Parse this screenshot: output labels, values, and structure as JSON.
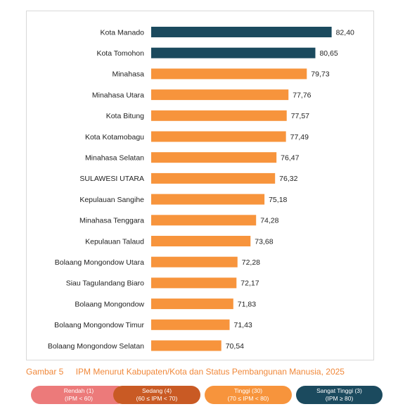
{
  "chart_data": {
    "type": "bar",
    "orientation": "horizontal",
    "categories": [
      "Kota Manado",
      "Kota Tomohon",
      "Minahasa",
      "Minahasa Utara",
      "Kota Bitung",
      "Kota Kotamobagu",
      "Minahasa Selatan",
      "SULAWESI UTARA",
      "Kepulauan Sangihe",
      "Minahasa Tenggara",
      "Kepulauan Talaud",
      "Bolaang Mongondow Utara",
      "Siau Tagulandang Biaro",
      "Bolaang Mongondow",
      "Bolaang Mongondow Timur",
      "Bolaang Mongondow Selatan"
    ],
    "values": [
      82.4,
      80.65,
      79.73,
      77.76,
      77.57,
      77.49,
      76.47,
      76.32,
      75.18,
      74.28,
      73.68,
      72.28,
      72.17,
      71.83,
      71.43,
      70.54
    ],
    "value_labels": [
      "82,40",
      "80,65",
      "79,73",
      "77,76",
      "77,57",
      "77,49",
      "76,47",
      "76,32",
      "75,18",
      "74,28",
      "73,68",
      "72,28",
      "72,17",
      "71,83",
      "71,43",
      "70,54"
    ],
    "status": [
      "sangat_tinggi",
      "sangat_tinggi",
      "tinggi",
      "tinggi",
      "tinggi",
      "tinggi",
      "tinggi",
      "tinggi",
      "tinggi",
      "tinggi",
      "tinggi",
      "tinggi",
      "tinggi",
      "tinggi",
      "tinggi",
      "tinggi"
    ],
    "xlim": [
      63,
      85
    ],
    "grid": false,
    "legend_position": "bottom"
  },
  "colors": {
    "sangat_tinggi": "#1b4a5e",
    "tinggi": "#f7943c",
    "sedang": "#c95a24",
    "rendah": "#ec7a7a",
    "caption": "#f0883a"
  },
  "caption": {
    "number": "Gambar 5",
    "text": "IPM Menurut Kabupaten/Kota dan Status Pembangunan Manusia, 2025"
  },
  "legend": [
    {
      "key": "rendah",
      "line1": "Rendah (1)",
      "line2": "(IPM < 60)"
    },
    {
      "key": "sedang",
      "line1": "Sedang (4)",
      "line2": "(60 ≤ IPM < 70)"
    },
    {
      "key": "tinggi",
      "line1": "Tinggi (30)",
      "line2": "(70 ≤ IPM < 80)"
    },
    {
      "key": "sangat_tinggi",
      "line1": "Sangat Tinggi (3)",
      "line2": "(IPM ≥ 80)"
    }
  ]
}
